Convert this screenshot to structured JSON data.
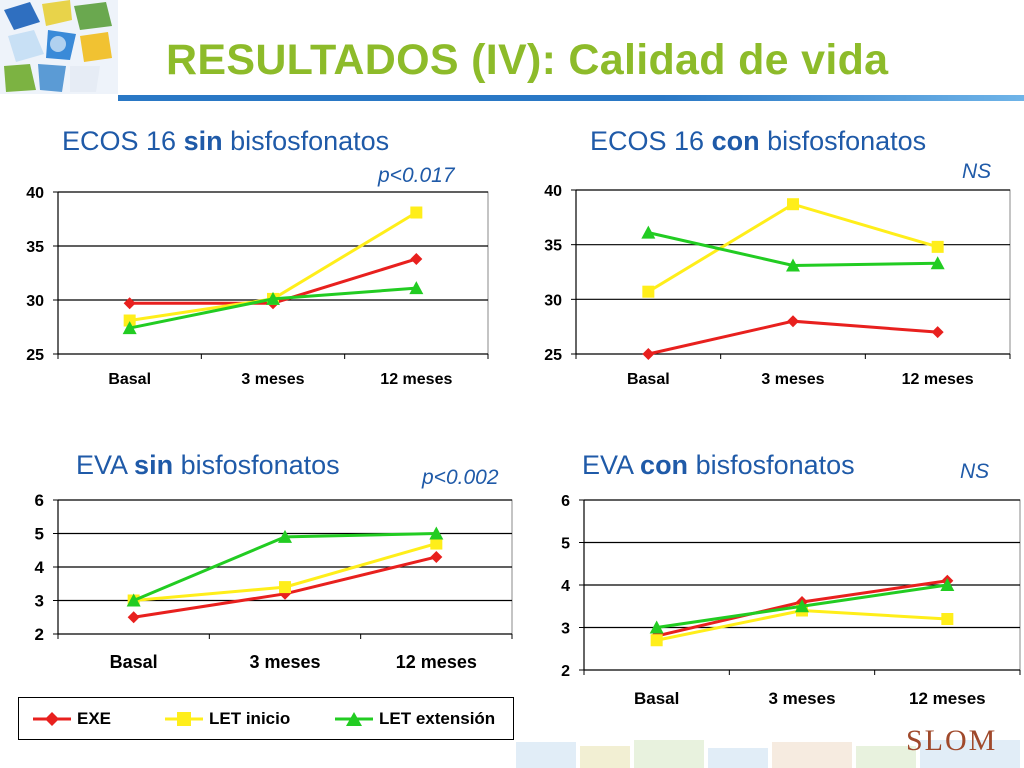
{
  "title": "RESULTADOS (IV): Calidad de vida",
  "colors": {
    "title": "#8dbb2a",
    "subtitle": "#1f5aa8",
    "EXE": "#e8201e",
    "LET inicio": "#ffee1a",
    "LET extensión": "#22cc22"
  },
  "charts": [
    {
      "title_prefix": "ECOS 16 ",
      "title_bold": "sin",
      "title_suffix": " bisfosfonatos",
      "pvalue": "p<0.017"
    },
    {
      "title_prefix": "ECOS 16 ",
      "title_bold": "con",
      "title_suffix": " bisfosfonatos",
      "pvalue": "NS"
    },
    {
      "title_prefix": "EVA ",
      "title_bold": "sin",
      "title_suffix": " bisfosfonatos",
      "pvalue": "p<0.002"
    },
    {
      "title_prefix": "EVA ",
      "title_bold": "con",
      "title_suffix": " bisfosfonatos",
      "pvalue": "NS"
    }
  ],
  "legend": {
    "items": [
      "EXE",
      "LET inicio",
      "LET extensión"
    ]
  },
  "logo_text": "SLOM",
  "chart_data": [
    {
      "type": "line",
      "title": "ECOS 16 sin bisfosfonatos",
      "categories": [
        "Basal",
        "3 meses",
        "12 meses"
      ],
      "ylim": [
        25,
        40
      ],
      "yticks": [
        25,
        30,
        35,
        40
      ],
      "grid": true,
      "series": [
        {
          "name": "EXE",
          "values": [
            29.7,
            29.7,
            33.8
          ]
        },
        {
          "name": "LET inicio",
          "values": [
            28.1,
            30.1,
            38.1
          ]
        },
        {
          "name": "LET extensión",
          "values": [
            27.4,
            30.1,
            31.1
          ]
        }
      ]
    },
    {
      "type": "line",
      "title": "ECOS 16 con bisfosfonatos",
      "categories": [
        "Basal",
        "3 meses",
        "12 meses"
      ],
      "ylim": [
        25,
        40
      ],
      "yticks": [
        25,
        30,
        35,
        40
      ],
      "grid": true,
      "series": [
        {
          "name": "EXE",
          "values": [
            25.0,
            28.0,
            27.0
          ]
        },
        {
          "name": "LET inicio",
          "values": [
            30.7,
            38.7,
            34.8
          ]
        },
        {
          "name": "LET extensión",
          "values": [
            36.1,
            33.1,
            33.3
          ]
        }
      ]
    },
    {
      "type": "line",
      "title": "EVA sin bisfosfonatos",
      "categories": [
        "Basal",
        "3 meses",
        "12 meses"
      ],
      "ylim": [
        2,
        6
      ],
      "yticks": [
        2,
        3,
        4,
        5,
        6
      ],
      "grid": true,
      "series": [
        {
          "name": "EXE",
          "values": [
            2.5,
            3.2,
            4.3
          ]
        },
        {
          "name": "LET inicio",
          "values": [
            3.0,
            3.4,
            4.7
          ]
        },
        {
          "name": "LET extensión",
          "values": [
            3.0,
            4.9,
            5.0
          ]
        }
      ]
    },
    {
      "type": "line",
      "title": "EVA con bisfosfonatos",
      "categories": [
        "Basal",
        "3 meses",
        "12 meses"
      ],
      "ylim": [
        2,
        6
      ],
      "yticks": [
        2,
        3,
        4,
        5,
        6
      ],
      "grid": true,
      "series": [
        {
          "name": "EXE",
          "values": [
            2.8,
            3.6,
            4.1
          ]
        },
        {
          "name": "LET inicio",
          "values": [
            2.7,
            3.4,
            3.2
          ]
        },
        {
          "name": "LET extensión",
          "values": [
            3.0,
            3.5,
            4.0
          ]
        }
      ]
    }
  ]
}
